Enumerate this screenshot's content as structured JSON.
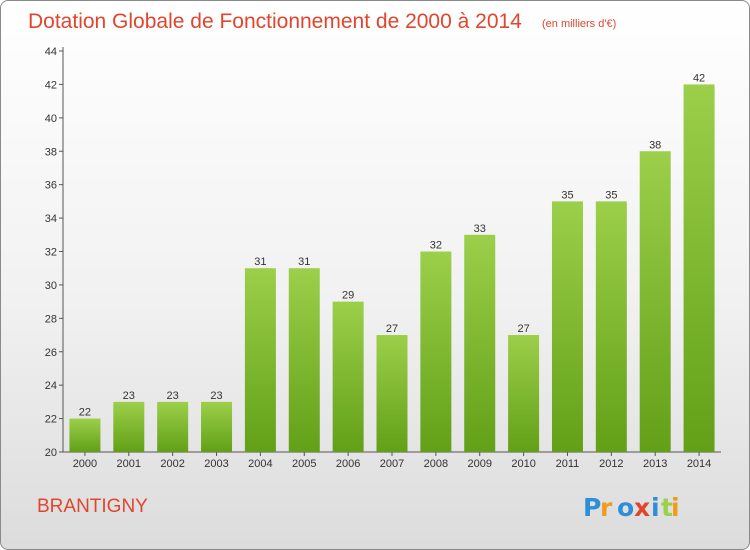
{
  "title": "Dotation Globale de Fonctionnement de 2000 à 2014",
  "unit_note": "(en milliers d'€)",
  "commune": "BRANTIGNY",
  "logo": {
    "text": "Proxiti"
  },
  "colors": {
    "title": "#e0462e",
    "bar_light": "#9ccf4a",
    "bar_dark": "#62a018",
    "logo_letters": [
      "#2e8fd8",
      "#f29a1c",
      "#2e8fd8",
      "#e0462e",
      "#2e8fd8",
      "#9ccf4a",
      "#f29a1c"
    ]
  },
  "chart_data": {
    "type": "bar",
    "categories": [
      "2000",
      "2001",
      "2002",
      "2003",
      "2004",
      "2005",
      "2006",
      "2007",
      "2008",
      "2009",
      "2010",
      "2011",
      "2012",
      "2013",
      "2014"
    ],
    "values": [
      22,
      23,
      23,
      23,
      31,
      31,
      29,
      27,
      32,
      33,
      27,
      35,
      35,
      38,
      42
    ],
    "yticks": [
      20,
      22,
      24,
      26,
      28,
      30,
      32,
      34,
      36,
      38,
      40,
      42,
      44
    ],
    "ylim": [
      20,
      44
    ],
    "grid": false,
    "legend": "none"
  }
}
